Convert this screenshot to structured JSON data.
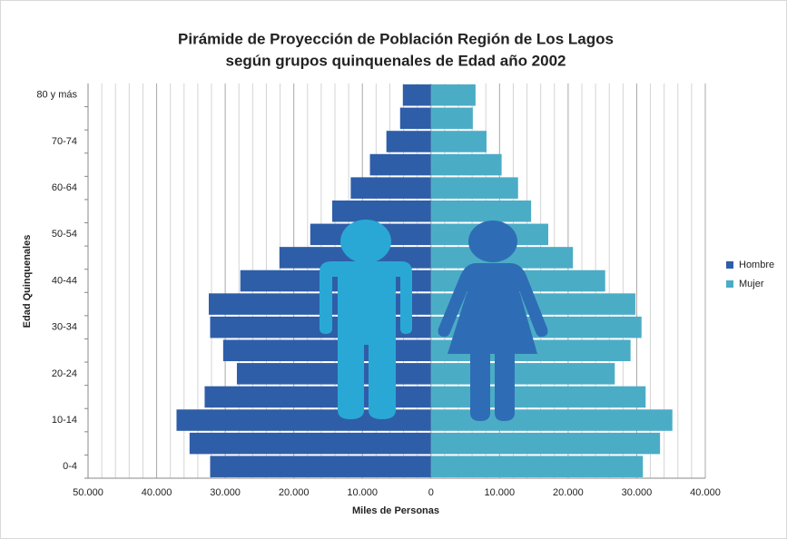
{
  "chart_data": {
    "type": "pyramid",
    "title": [
      "Pirámide de Proyección de Población Región de Los Lagos",
      "según grupos quinquenales de Edad año 2002"
    ],
    "y_label": "Edad Quinquenales",
    "x_label": "Miles de Personas",
    "categories": [
      "0-4",
      null,
      "10-14",
      null,
      "20-24",
      null,
      "30-34",
      null,
      "40-44",
      null,
      "50-54",
      null,
      "60-64",
      null,
      "70-74",
      null,
      "80 y más"
    ],
    "series": [
      {
        "name": "Hombre",
        "color": "#2f5ea8",
        "values": [
          -32200,
          -35200,
          -37100,
          -33000,
          -28300,
          -30300,
          -32200,
          -32400,
          -27800,
          -22100,
          -17600,
          -14400,
          -11700,
          -8900,
          -6500,
          -4500,
          -4100
        ]
      },
      {
        "name": "Mujer",
        "color": "#4bacc6",
        "values": [
          30900,
          33400,
          35200,
          31300,
          26800,
          29100,
          30700,
          29800,
          25400,
          20700,
          17100,
          14600,
          12700,
          10300,
          8100,
          6100,
          6500
        ]
      }
    ],
    "xlim": [
      -50000,
      40000
    ],
    "xticks": [
      {
        "value": -50000,
        "label": "50.000"
      },
      {
        "value": -40000,
        "label": "40.000"
      },
      {
        "value": -30000,
        "label": "30.000"
      },
      {
        "value": -20000,
        "label": "20.000"
      },
      {
        "value": -10000,
        "label": "10.000"
      },
      0,
      {
        "value": 10000,
        "label": "10.000"
      },
      {
        "value": 20000,
        "label": "20.000"
      },
      {
        "value": 30000,
        "label": "30.000"
      },
      {
        "value": 40000,
        "label": "40.000"
      }
    ],
    "grid": true,
    "legend": "right"
  }
}
